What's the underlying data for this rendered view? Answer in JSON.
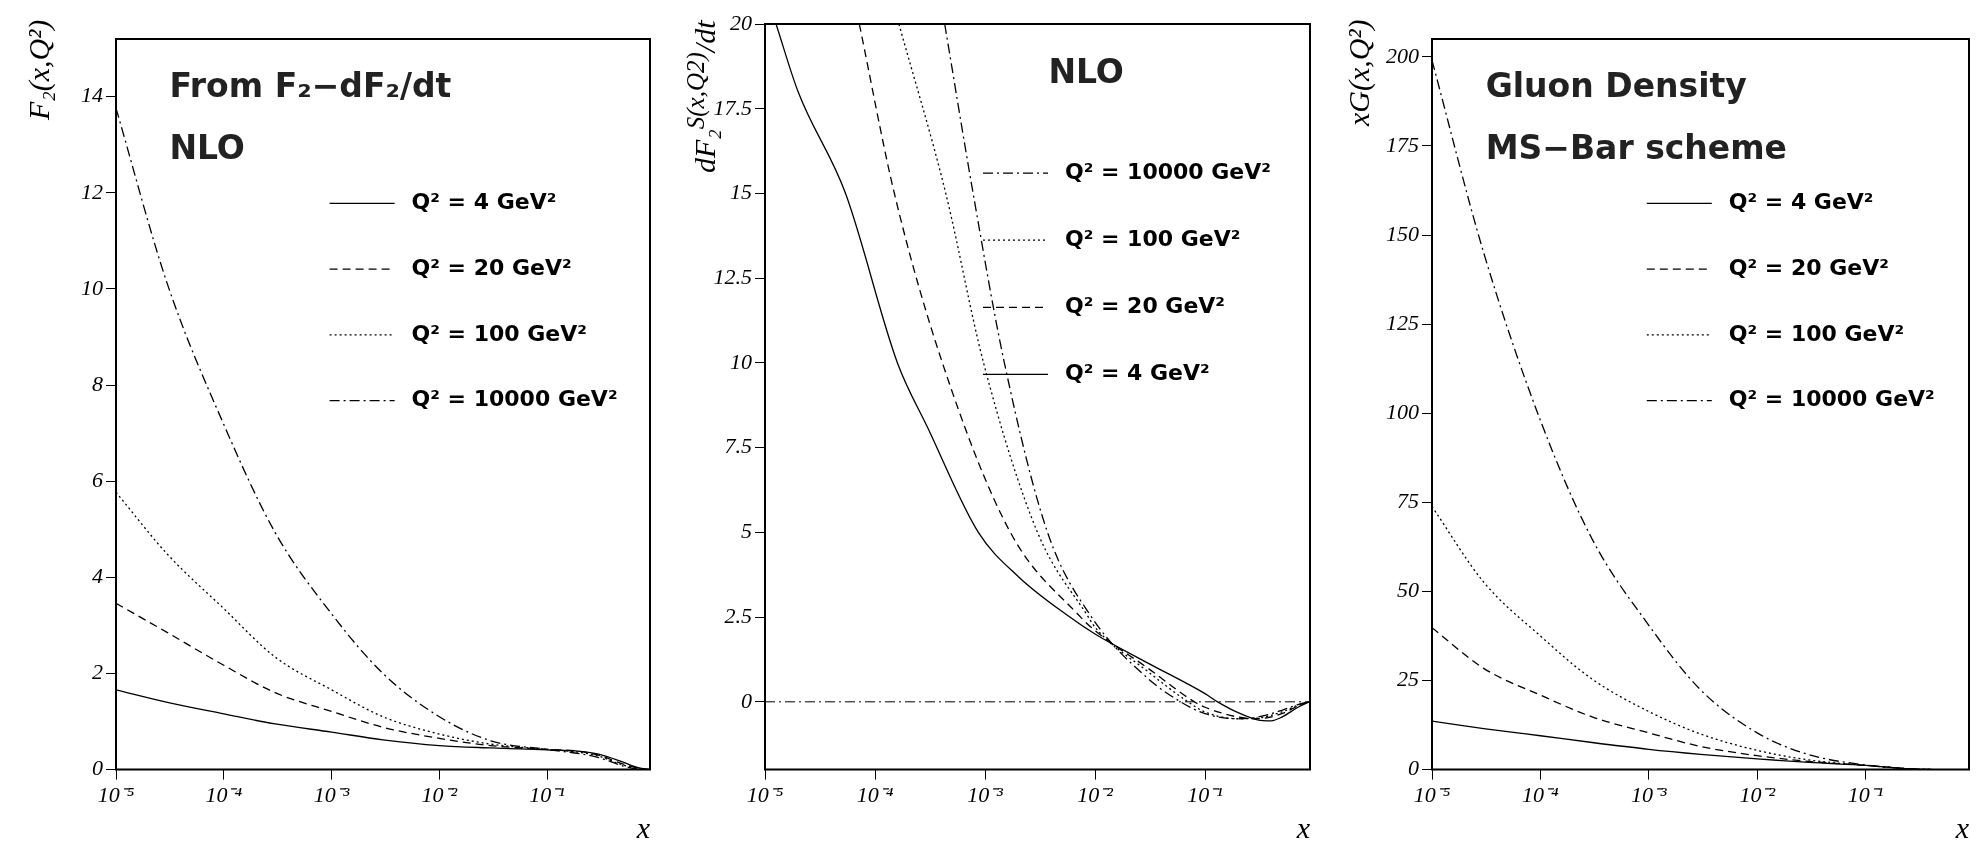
{
  "chart_data": [
    {
      "type": "line",
      "title": "From F₂−dF₂/dt",
      "subtitle": "NLO",
      "xlabel": "x",
      "ylabel": "F₂(x,Q²)",
      "log": "x",
      "legend": "top right",
      "grid": false,
      "xlim": [
        1e-05,
        0.9
      ],
      "xticks": [
        {
          "value": 1e-05,
          "label": "10⁻⁵"
        },
        {
          "value": 0.0001,
          "label": "10⁻⁴"
        },
        {
          "value": 0.001,
          "label": "10⁻³"
        },
        {
          "value": 0.01,
          "label": "10⁻²"
        },
        {
          "value": 0.1,
          "label": "10⁻¹"
        }
      ],
      "ylim": [
        0,
        15.2
      ],
      "yticks": [
        0,
        2,
        4,
        6,
        8,
        10,
        12,
        14
      ],
      "x": [
        1e-05,
        3e-05,
        0.0001,
        0.0003,
        0.001,
        0.003,
        0.01,
        0.03,
        0.1,
        0.2,
        0.3,
        0.5,
        0.7,
        0.9
      ],
      "series": [
        {
          "name": "Q² = 4 GeV²",
          "color": "#000000",
          "line_style": "solid",
          "values": [
            1.66,
            1.4,
            1.16,
            0.95,
            0.78,
            0.62,
            0.5,
            0.45,
            0.41,
            0.38,
            0.32,
            0.16,
            0.04,
            0
          ]
        },
        {
          "name": "Q² = 20 GeV²",
          "color": "#000000",
          "line_style": "dashed",
          "values": [
            3.46,
            2.85,
            2.17,
            1.6,
            1.21,
            0.88,
            0.65,
            0.5,
            0.42,
            0.38,
            0.3,
            0.12,
            0.03,
            0
          ]
        },
        {
          "name": "Q² = 100 GeV²",
          "color": "#000000",
          "line_style": "dotted",
          "values": [
            5.77,
            4.48,
            3.35,
            2.34,
            1.66,
            1.1,
            0.74,
            0.53,
            0.42,
            0.36,
            0.28,
            0.1,
            0.02,
            0
          ]
        },
        {
          "name": "Q² = 10000 GeV²",
          "color": "#000000",
          "line_style": "dashdot",
          "values": [
            13.76,
            10.1,
            7.18,
            4.93,
            3.24,
            2.0,
            1.1,
            0.6,
            0.42,
            0.33,
            0.25,
            0.08,
            0.01,
            0
          ]
        }
      ]
    },
    {
      "type": "line",
      "title": "NLO",
      "xlabel": "x",
      "ylabel": "dF₂$^{S(x,Q2)}$/dt",
      "log": "x",
      "legend": "right",
      "grid": false,
      "xlim": [
        1e-05,
        0.9
      ],
      "xticks": [
        {
          "value": 1e-05,
          "label": "10⁻⁵"
        },
        {
          "value": 0.0001,
          "label": "10⁻⁴"
        },
        {
          "value": 0.001,
          "label": "10⁻³"
        },
        {
          "value": 0.01,
          "label": "10⁻²"
        },
        {
          "value": 0.1,
          "label": "10⁻¹"
        }
      ],
      "ylim": [
        -2,
        20
      ],
      "yticks": [
        0,
        2.5,
        5,
        7.5,
        10,
        12.5,
        15,
        17.5,
        20
      ],
      "ref_lines": [
        {
          "axis": "y",
          "value": 0,
          "color": "#000000",
          "line_style": "dashdot"
        }
      ],
      "series": [
        {
          "name": "Q² = 10000 GeV²",
          "color": "#000000",
          "line_style": "dashdot",
          "x": [
            0.00043,
            0.00078,
            0.0015,
            0.0037,
            0.0093,
            0.03,
            0.06,
            0.1,
            0.2,
            0.3,
            0.5,
            0.7,
            0.88
          ],
          "values": [
            20,
            15,
            10,
            5,
            2.5,
            0.7,
            0,
            -0.35,
            -0.5,
            -0.45,
            -0.25,
            -0.08,
            0
          ]
        },
        {
          "name": "Q² = 100 GeV²",
          "color": "#000000",
          "line_style": "dotted",
          "x": [
            0.000165,
            0.00044,
            0.00097,
            0.003,
            0.0087,
            0.01,
            0.03,
            0.07,
            0.1,
            0.2,
            0.3,
            0.5,
            0.7,
            0.88
          ],
          "values": [
            20,
            15,
            10,
            5,
            2.5,
            2.2,
            0.9,
            0,
            -0.3,
            -0.5,
            -0.48,
            -0.3,
            -0.1,
            0
          ]
        },
        {
          "name": "Q² = 20 GeV²",
          "color": "#000000",
          "line_style": "dashed",
          "x": [
            7.2e-05,
            0.00015,
            0.00041,
            0.0017,
            0.0074,
            0.01,
            0.03,
            0.08,
            0.1,
            0.2,
            0.3,
            0.5,
            0.7,
            0.88
          ],
          "values": [
            20,
            15,
            10,
            5,
            2.5,
            2.1,
            1.0,
            0,
            -0.16,
            -0.45,
            -0.5,
            -0.35,
            -0.12,
            0
          ]
        },
        {
          "name": "Q² = 4 GeV²",
          "color": "#000000",
          "line_style": "solid",
          "x": [
            1.26e-05,
            2e-05,
            5.4e-05,
            0.00016,
            0.0003,
            0.00087,
            0.002,
            0.0059,
            0.01,
            0.03,
            0.1,
            0.13,
            0.2,
            0.3,
            0.4,
            0.5,
            0.7,
            0.88
          ],
          "values": [
            20,
            18,
            15,
            10,
            8.1,
            5,
            3.7,
            2.5,
            2.0,
            1.15,
            0.24,
            0,
            -0.32,
            -0.53,
            -0.56,
            -0.45,
            -0.16,
            0
          ]
        }
      ]
    },
    {
      "type": "line",
      "title": "Gluon Density",
      "subtitle": "MS−Bar scheme",
      "xlabel": "x",
      "ylabel": "xG(x,Q²)",
      "log": "x",
      "legend": "top right",
      "grid": false,
      "xlim": [
        1e-05,
        0.9
      ],
      "xticks": [
        {
          "value": 1e-05,
          "label": "10⁻⁵"
        },
        {
          "value": 0.0001,
          "label": "10⁻⁴"
        },
        {
          "value": 0.001,
          "label": "10⁻³"
        },
        {
          "value": 0.01,
          "label": "10⁻²"
        },
        {
          "value": 0.1,
          "label": "10⁻¹"
        }
      ],
      "ylim": [
        0,
        205
      ],
      "yticks": [
        0,
        25,
        50,
        75,
        100,
        125,
        150,
        175,
        200
      ],
      "x": [
        1e-05,
        3e-05,
        0.0001,
        0.0003,
        0.001,
        0.003,
        0.01,
        0.03,
        0.1,
        0.3,
        0.5
      ],
      "series": [
        {
          "name": "Q² = 4 GeV²",
          "color": "#000000",
          "line_style": "solid",
          "values": [
            13.6,
            11.5,
            9.5,
            7.6,
            5.7,
            4.3,
            3.0,
            2.0,
            1.2,
            0.1,
            0
          ]
        },
        {
          "name": "Q² = 20 GeV²",
          "color": "#000000",
          "line_style": "dashed",
          "values": [
            39.8,
            28.4,
            20.9,
            14.8,
            10.3,
            6.5,
            3.9,
            2.3,
            1.2,
            0.1,
            0
          ]
        },
        {
          "name": "Q² = 100 GeV²",
          "color": "#000000",
          "line_style": "dotted",
          "values": [
            73.8,
            52.6,
            37.5,
            25.4,
            16.3,
            10,
            5.4,
            2.7,
            1.2,
            0.1,
            0
          ]
        },
        {
          "name": "Q² = 10000 GeV²",
          "color": "#000000",
          "line_style": "dashdot",
          "values": [
            199,
            145,
            98,
            64.7,
            40.5,
            22.4,
            10.3,
            4.2,
            1.3,
            0.1,
            0
          ]
        }
      ]
    }
  ]
}
